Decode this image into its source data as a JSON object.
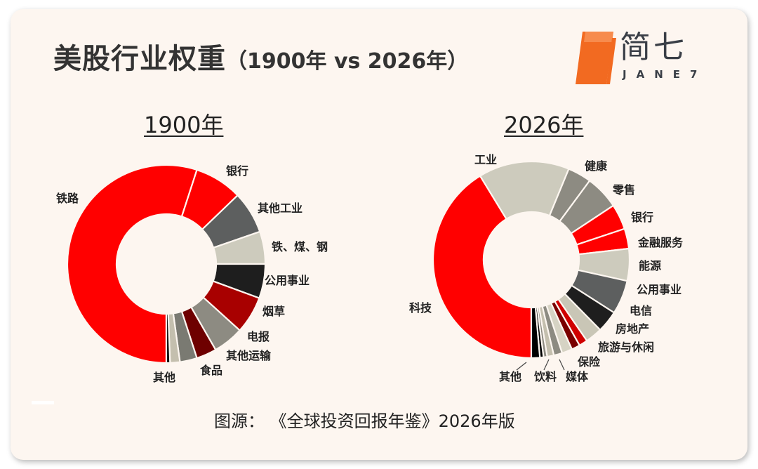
{
  "header": {
    "title_main": "美股行业权重",
    "title_sub": "（1900年 vs 2026年）",
    "logo_cn": "简七",
    "logo_en": "JANE7"
  },
  "colors": {
    "background": "#fdf6f0",
    "logo_orange": "#f26a21",
    "red": "#ff0000",
    "dark_red": "#a80000",
    "darker_red": "#6e0000",
    "dark_grey": "#5d5f5f",
    "mid_grey": "#8d8b82",
    "light_beige": "#cdcbbd",
    "near_black": "#1e1e1e",
    "black": "#000000"
  },
  "chart_data": [
    {
      "type": "pie",
      "variant": "donut",
      "title": "1900年",
      "start": "6 o'clock, clockwise",
      "units": "% of US stock market",
      "slices": [
        {
          "label": "铁路",
          "value": 55.0,
          "color": "#ff0000"
        },
        {
          "label": "银行",
          "value": 7.8,
          "color": "#ff0000"
        },
        {
          "label": "其他工业",
          "value": 6.9,
          "color": "#5d5f5f"
        },
        {
          "label": "铁、煤、钢",
          "value": 5.3,
          "color": "#cdcbbd"
        },
        {
          "label": "公用事业",
          "value": 5.6,
          "color": "#1e1e1e"
        },
        {
          "label": "烟草",
          "value": 6.1,
          "color": "#a80000"
        },
        {
          "label": "电报",
          "value": 5.0,
          "color": "#8d8b82"
        },
        {
          "label": "其他运输",
          "value": 3.3,
          "color": "#6e0000"
        },
        {
          "label": "食品",
          "value": 2.8,
          "color": "#7a7a72"
        },
        {
          "label": "",
          "value": 1.6,
          "color": "#c4bfae"
        },
        {
          "label": "其他",
          "value": 0.6,
          "color": "#000000"
        }
      ]
    },
    {
      "type": "pie",
      "variant": "donut",
      "title": "2026年",
      "start": "6 o'clock, clockwise",
      "units": "% of US stock market",
      "slices": [
        {
          "label": "科技",
          "value": 41.4,
          "color": "#ff0000"
        },
        {
          "label": "工业",
          "value": 15.0,
          "color": "#cdcbbd"
        },
        {
          "label": "健康",
          "value": 3.9,
          "color": "#8d8b82"
        },
        {
          "label": "零售",
          "value": 5.6,
          "color": "#8d8b82"
        },
        {
          "label": "银行",
          "value": 4.2,
          "color": "#ff0000"
        },
        {
          "label": "金融服务",
          "value": 3.3,
          "color": "#ff0000"
        },
        {
          "label": "能源",
          "value": 5.3,
          "color": "#cdcbbd"
        },
        {
          "label": "公用事业",
          "value": 5.6,
          "color": "#5d5f5f"
        },
        {
          "label": "电信",
          "value": 3.6,
          "color": "#1e1e1e"
        },
        {
          "label": "",
          "value": 2.8,
          "color": "#c9c6b6"
        },
        {
          "label": "房地产",
          "value": 1.4,
          "color": "#d00000"
        },
        {
          "label": "旅游与休闲",
          "value": 1.4,
          "color": "#7a0000"
        },
        {
          "label": "",
          "value": 1.7,
          "color": "#d6d3c4"
        },
        {
          "label": "保险",
          "value": 1.4,
          "color": "#8d8b82"
        },
        {
          "label": "媒体",
          "value": 1.1,
          "color": "#c4bfae"
        },
        {
          "label": "",
          "value": 0.6,
          "color": "#8d8b82"
        },
        {
          "label": "饮料",
          "value": 0.6,
          "color": "#000000"
        },
        {
          "label": "其他",
          "value": 1.4,
          "color": "#000000"
        }
      ]
    }
  ],
  "footer": {
    "source": "图源：  《全球投资回报年鉴》2026年版"
  }
}
